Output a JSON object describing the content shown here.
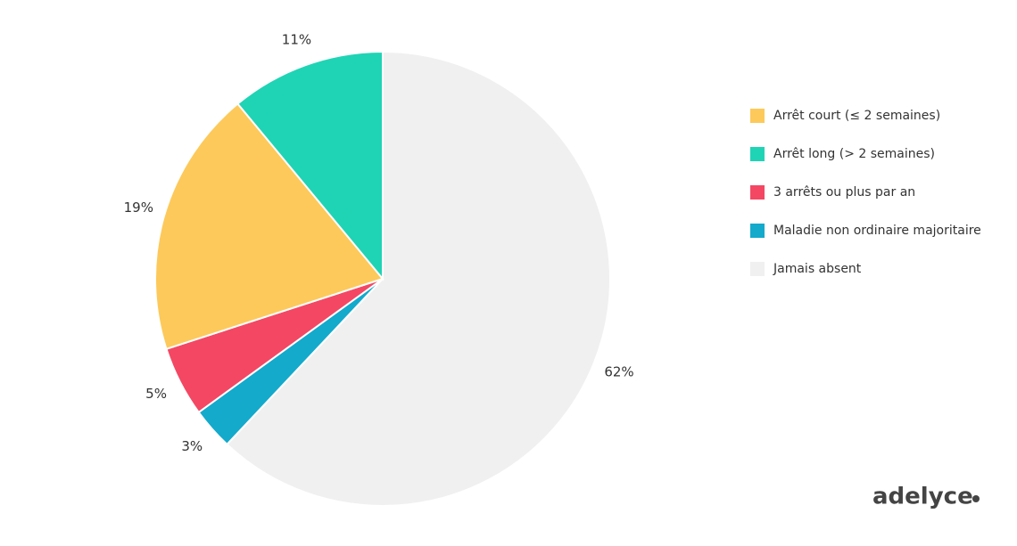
{
  "chart_data": {
    "type": "pie",
    "categories": [
      "Arrêt court (≤ 2 semaines)",
      "Arrêt long (> 2 semaines)",
      "3 arrêts ou plus par an",
      "Maladie non ordinaire majoritaire",
      "Jamais absent"
    ],
    "values": [
      19,
      11,
      5,
      3,
      62
    ],
    "value_labels": [
      "19%",
      "11%",
      "5%",
      "3%",
      "62%"
    ],
    "colors": [
      "#fdc95a",
      "#1fd4b5",
      "#f44763",
      "#13aacc",
      "#f0f0f0"
    ]
  },
  "brand": "adelyce"
}
